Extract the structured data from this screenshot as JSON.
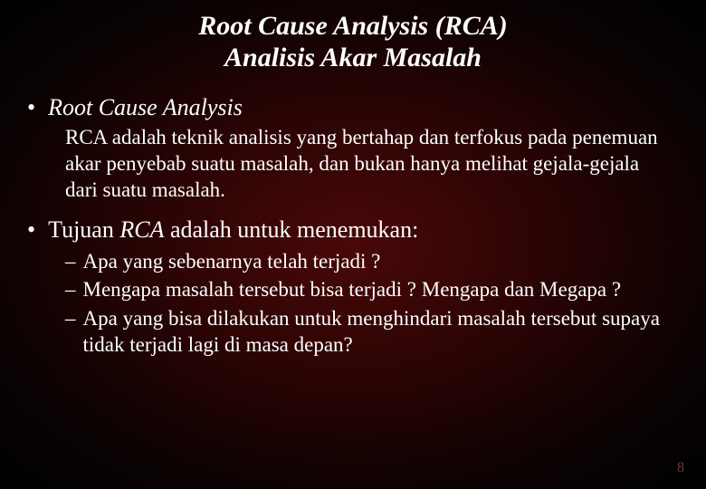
{
  "title_line1": "Root Cause Analysis (RCA)",
  "title_line2": "Analisis Akar Masalah",
  "bullet1_text": "Root Cause Analysis",
  "bullet1_para": "RCA adalah teknik analisis yang bertahap dan terfokus pada penemuan akar penyebab suatu masalah, dan bukan hanya melihat gejala-gejala dari suatu masalah.",
  "bullet2_prefix": "Tujuan ",
  "bullet2_italic": "RCA",
  "bullet2_suffix": " adalah untuk menemukan:",
  "dashes": [
    "Apa yang sebenarnya telah terjadi ?",
    "Mengapa masalah tersebut bisa terjadi ? Mengapa dan Megapa ?",
    "Apa yang bisa dilakukan untuk menghindari masalah tersebut supaya tidak terjadi lagi di masa depan?"
  ],
  "page_number": "8",
  "colors": {
    "text": "#ffffff",
    "bg_center": "#4a0808",
    "bg_outer": "#000000",
    "pagenum": "#6b3a3a"
  },
  "fonts": {
    "family": "Times New Roman",
    "title_size_pt": 30,
    "bullet_size_pt": 26,
    "body_size_pt": 23
  }
}
